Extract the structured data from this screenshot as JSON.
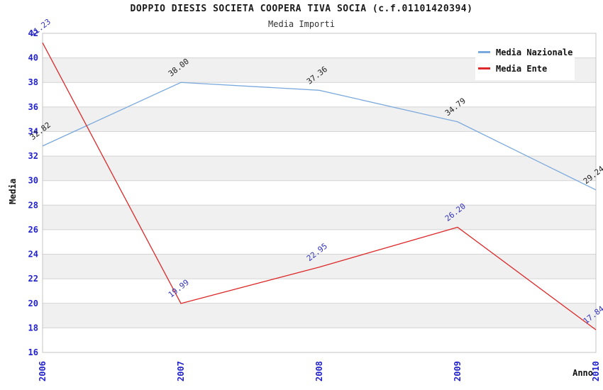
{
  "title": "DOPPIO DIESIS SOCIETA COOPERA TIVA SOCIA (c.f.01101420394)",
  "subtitle": "Media Importi",
  "legend": {
    "items": [
      {
        "label": "Media Nazionale",
        "color": "#7aa9dd"
      },
      {
        "label": "Media Ente",
        "color": "#dd2929"
      }
    ]
  },
  "chart_data": {
    "type": "line",
    "title": "DOPPIO DIESIS SOCIETA COOPERA TIVA SOCIA (c.f.01101420394)",
    "subtitle": "Media Importi",
    "x_categories": [
      "2006",
      "2007",
      "2008",
      "2009",
      "2010"
    ],
    "series": [
      {
        "name": "Media Nazionale",
        "color": "#7aa9dd",
        "label_color": "#222222",
        "values": [
          32.82,
          38.0,
          37.36,
          34.79,
          29.24
        ],
        "labels": [
          "32.82",
          "38.00",
          "37.36",
          "34.79",
          "29.24"
        ]
      },
      {
        "name": "Media Ente",
        "color": "#dd2929",
        "label_color": "#3333bb",
        "values": [
          41.23,
          19.99,
          22.95,
          26.2,
          17.84
        ],
        "labels": [
          "41.23",
          "19.99",
          "22.95",
          "26.20",
          "17.84"
        ]
      }
    ],
    "xlabel": "Anno",
    "ylabel": "Media",
    "ylim": [
      16,
      42
    ],
    "ytick_step": 2,
    "grid": true,
    "legend_position": "top-right",
    "tick_color": "#2222cc",
    "axis_title_color": "#111111",
    "gridline_color": "#d4d4d4",
    "plot_border_color": "#c4c4c4",
    "band_colors": [
      "#ffffff",
      "#f0f0f0"
    ],
    "data_label_rotation_deg": -38
  }
}
